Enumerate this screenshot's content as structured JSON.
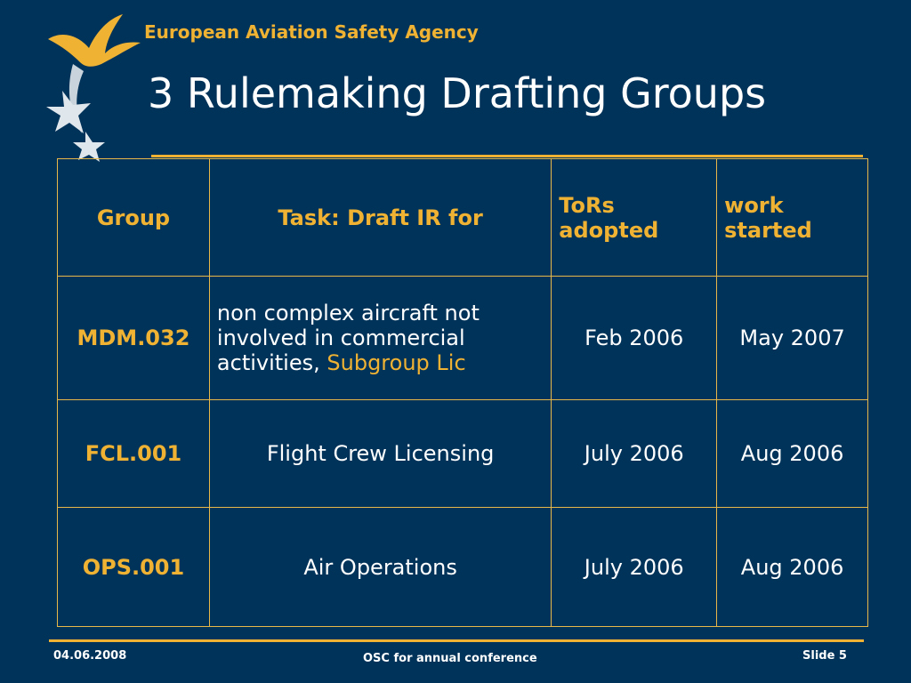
{
  "header": {
    "agency": "European Aviation Safety Agency",
    "title": "3 Rulemaking Drafting Groups"
  },
  "table": {
    "headers": {
      "group": "Group",
      "task": "Task: Draft IR for",
      "tors": "ToRs adopted",
      "work": "work started"
    },
    "rows": [
      {
        "group": "MDM.032",
        "task": "non complex aircraft not involved in commercial activities, ",
        "task_highlight": "Subgroup Lic",
        "tors": "Feb 2006",
        "work": "May 2007"
      },
      {
        "group": "FCL.001",
        "task": "Flight Crew Licensing",
        "tors": "July 2006",
        "work": "Aug 2006"
      },
      {
        "group": "OPS.001",
        "task": "Air Operations",
        "tors": "July 2006",
        "work": "Aug 2006"
      }
    ]
  },
  "footer": {
    "date": "04.06.2008",
    "center": "OSC for annual conference",
    "slide": "Slide 5"
  },
  "colors": {
    "background": "#003359",
    "accent": "#f0b233",
    "text": "#ffffff"
  },
  "icons": {
    "logo": "easa-birds-stars-logo"
  }
}
